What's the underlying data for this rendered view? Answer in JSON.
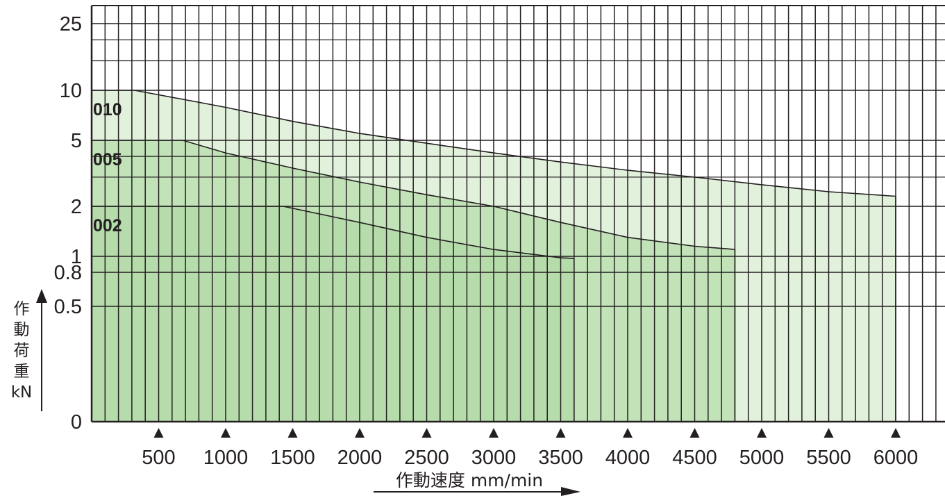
{
  "chart_data": {
    "type": "area",
    "x": {
      "label": "作動速度 mm/min",
      "min": 0,
      "max": 6000,
      "ticks": [
        500,
        1000,
        1500,
        2000,
        2500,
        3000,
        3500,
        4000,
        4500,
        5000,
        5500,
        6000
      ],
      "tick_labels": [
        "500",
        "1000",
        "1500",
        "2000",
        "2500",
        "3000",
        "3500",
        "4000",
        "4500",
        "5000",
        "5500",
        "6000"
      ]
    },
    "y": {
      "label_lines": [
        "作",
        "動",
        "荷",
        "重",
        "kN"
      ],
      "tick_labels": [
        "25",
        "10",
        "5",
        "2",
        "1",
        "0.8",
        "0.5",
        "0"
      ],
      "tick_values": [
        25,
        10,
        5,
        2,
        1,
        0.8,
        0.5,
        0
      ]
    },
    "series": [
      {
        "name": "010",
        "color": "#e1f1dc",
        "points": [
          [
            0,
            10
          ],
          [
            320,
            10
          ],
          [
            1000,
            7.9
          ],
          [
            1500,
            6.5
          ],
          [
            2000,
            5.5
          ],
          [
            2500,
            4.8
          ],
          [
            3000,
            4.2
          ],
          [
            3500,
            3.7
          ],
          [
            4000,
            3.3
          ],
          [
            4500,
            3.0
          ],
          [
            5000,
            2.7
          ],
          [
            5500,
            2.45
          ],
          [
            6000,
            2.3
          ]
        ],
        "x_end": 6000
      },
      {
        "name": "005",
        "color": "#c2e3b8",
        "points": [
          [
            0,
            5
          ],
          [
            680,
            5
          ],
          [
            1000,
            4.2
          ],
          [
            1500,
            3.4
          ],
          [
            2000,
            2.8
          ],
          [
            2500,
            2.35
          ],
          [
            3000,
            2.0
          ],
          [
            3500,
            1.6
          ],
          [
            4000,
            1.3
          ],
          [
            4500,
            1.15
          ],
          [
            4800,
            1.1
          ]
        ],
        "x_end": 4800
      },
      {
        "name": "002",
        "color": "#b6dcab",
        "points": [
          [
            0,
            2
          ],
          [
            1430,
            2
          ],
          [
            2000,
            1.6
          ],
          [
            2500,
            1.3
          ],
          [
            3000,
            1.1
          ],
          [
            3500,
            0.98
          ],
          [
            3600,
            0.97
          ]
        ],
        "x_end": 3600
      }
    ],
    "grid": true
  }
}
